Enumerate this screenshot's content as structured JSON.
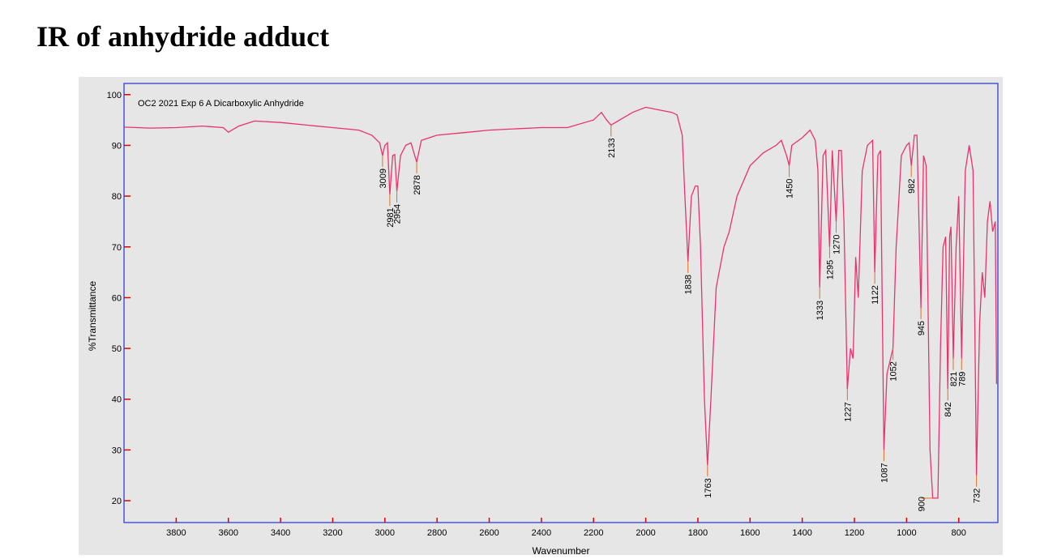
{
  "title": "IR of anhydride adduct",
  "chart_data": {
    "type": "line",
    "plot_title": "OC2 2021 Exp 6 A  Dicarboxylic Anhydride",
    "x_label": "Wavenumber",
    "y_label": "%Transmittance",
    "xlim": [
      4000,
      650
    ],
    "ylim": [
      15.7,
      102.2
    ],
    "xticks": [
      3800,
      3600,
      3400,
      3200,
      3000,
      2800,
      2600,
      2400,
      2200,
      2000,
      1800,
      1600,
      1400,
      1200,
      1000,
      800
    ],
    "yticks": [
      20,
      30,
      40,
      50,
      60,
      70,
      80,
      90,
      100
    ],
    "x": [
      4000,
      3900,
      3800,
      3700,
      3620,
      3600,
      3560,
      3500,
      3400,
      3300,
      3200,
      3100,
      3050,
      3020,
      3009,
      3000,
      2990,
      2981,
      2970,
      2962,
      2954,
      2940,
      2920,
      2900,
      2878,
      2860,
      2800,
      2700,
      2600,
      2400,
      2300,
      2200,
      2170,
      2150,
      2133,
      2100,
      2050,
      2000,
      1950,
      1900,
      1880,
      1860,
      1850,
      1838,
      1825,
      1810,
      1800,
      1790,
      1775,
      1763,
      1750,
      1730,
      1700,
      1680,
      1650,
      1600,
      1550,
      1500,
      1480,
      1460,
      1450,
      1440,
      1400,
      1370,
      1350,
      1340,
      1333,
      1320,
      1310,
      1295,
      1285,
      1270,
      1260,
      1250,
      1240,
      1227,
      1215,
      1205,
      1195,
      1185,
      1170,
      1150,
      1130,
      1122,
      1110,
      1100,
      1087,
      1075,
      1052,
      1040,
      1020,
      1000,
      990,
      982,
      970,
      960,
      945,
      935,
      925,
      910,
      900,
      880,
      870,
      860,
      850,
      842,
      835,
      830,
      821,
      810,
      800,
      789,
      775,
      760,
      745,
      732,
      720,
      710,
      700,
      690,
      680,
      670,
      660,
      655
    ],
    "series": [
      {
        "color": "#e8336a",
        "values": [
          93.6,
          93.4,
          93.5,
          93.8,
          93.5,
          92.6,
          93.8,
          94.8,
          94.5,
          94.0,
          93.5,
          93.0,
          92.0,
          90.5,
          88.0,
          90.0,
          90.5,
          80.3,
          88.0,
          88.2,
          81.0,
          88.0,
          90.0,
          90.5,
          86.7,
          91.0,
          92.0,
          92.5,
          93.0,
          93.5,
          93.5,
          95.0,
          96.5,
          95.0,
          94.0,
          95.0,
          96.5,
          97.5,
          97.0,
          96.5,
          96.0,
          92.0,
          80.0,
          67.1,
          80.0,
          82.0,
          82.0,
          70.0,
          40.0,
          27.0,
          40.0,
          62.0,
          70.0,
          73.0,
          80.0,
          86.0,
          88.5,
          90.0,
          91.0,
          88.0,
          86.0,
          90.0,
          91.5,
          93.0,
          91.0,
          85.0,
          62.0,
          88.0,
          89.0,
          70.0,
          89.0,
          75.0,
          89.0,
          89.0,
          75.0,
          42.0,
          50.0,
          48.0,
          68.0,
          60.0,
          85.0,
          90.0,
          91.0,
          65.0,
          88.0,
          89.0,
          30.0,
          45.0,
          50.0,
          70.0,
          88.0,
          90.0,
          90.5,
          86.0,
          92.0,
          92.0,
          58.0,
          88.0,
          86.0,
          30.0,
          20.5,
          20.5,
          50.0,
          70.0,
          72.0,
          42.0,
          72.0,
          74.0,
          48.0,
          70.0,
          80.0,
          48.0,
          85.0,
          90.0,
          85.0,
          25.0,
          55.0,
          65.0,
          60.0,
          75.0,
          79.0,
          73.0,
          75.0,
          43.0
        ]
      }
    ],
    "annotations": [
      {
        "x": 3009,
        "y": 88.0
      },
      {
        "x": 2981,
        "y": 80.3
      },
      {
        "x": 2954,
        "y": 81.0
      },
      {
        "x": 2878,
        "y": 86.7
      },
      {
        "x": 2133,
        "y": 94.0
      },
      {
        "x": 1838,
        "y": 67.1
      },
      {
        "x": 1763,
        "y": 27.0
      },
      {
        "x": 1450,
        "y": 86.0
      },
      {
        "x": 1333,
        "y": 62.0
      },
      {
        "x": 1295,
        "y": 70.0
      },
      {
        "x": 1270,
        "y": 75.0
      },
      {
        "x": 1227,
        "y": 42.0
      },
      {
        "x": 1122,
        "y": 65.0
      },
      {
        "x": 1087,
        "y": 30.0
      },
      {
        "x": 1052,
        "y": 50.0
      },
      {
        "x": 982,
        "y": 86.0
      },
      {
        "x": 945,
        "y": 58.0
      },
      {
        "x": 900,
        "y": 20.5
      },
      {
        "x": 842,
        "y": 42.0
      },
      {
        "x": 821,
        "y": 48.0
      },
      {
        "x": 789,
        "y": 48.0
      },
      {
        "x": 732,
        "y": 25.0
      }
    ]
  }
}
